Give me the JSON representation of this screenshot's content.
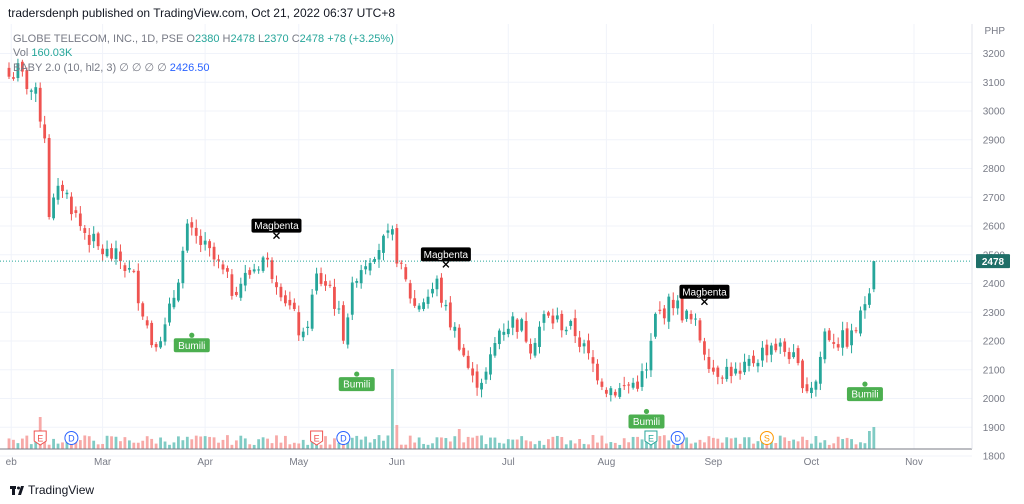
{
  "publisher_line": "tradersdenph published on TradingView.com, Oct 21, 2022 06:37 UTC+8",
  "footer": {
    "brand": "TradingView"
  },
  "legend": {
    "symbol": "GLOBE TELECOM, INC., 1D, PSE",
    "o_label": "O",
    "o": "2380",
    "h_label": "H",
    "h": "2478",
    "l_label": "L",
    "l": "2370",
    "c_label": "C",
    "c": "2478",
    "change": "+78 (+3.25%)",
    "vol_label": "Vol",
    "vol": "160.03K",
    "indicator": "BABY 2.0 (10, hl2, 3)",
    "indicator_values": "∅ ∅ ∅ ∅",
    "indicator_value": "2426.50"
  },
  "chart_data": {
    "type": "candlestick",
    "currency": "PHP",
    "ylim": [
      1800,
      3250
    ],
    "yticks": [
      3200,
      3100,
      3000,
      2900,
      2800,
      2700,
      2600,
      2500,
      2400,
      2300,
      2200,
      2100,
      2000,
      1900,
      1800
    ],
    "last_price": 2478,
    "xtick_labels": [
      {
        "label": "eb",
        "pos": 0.5
      },
      {
        "label": "Mar",
        "pos": 21
      },
      {
        "label": "Apr",
        "pos": 44
      },
      {
        "label": "May",
        "pos": 65
      },
      {
        "label": "Jun",
        "pos": 87
      },
      {
        "label": "Jul",
        "pos": 112
      },
      {
        "label": "Aug",
        "pos": 134
      },
      {
        "label": "Sep",
        "pos": 158
      },
      {
        "label": "Oct",
        "pos": 180
      },
      {
        "label": "Nov",
        "pos": 203
      }
    ],
    "anchors": [
      [
        0,
        3120
      ],
      [
        2,
        3140
      ],
      [
        6,
        3050
      ],
      [
        8,
        2920
      ],
      [
        9,
        2650
      ],
      [
        12,
        2740
      ],
      [
        16,
        2600
      ],
      [
        20,
        2520
      ],
      [
        25,
        2480
      ],
      [
        28,
        2420
      ],
      [
        32,
        2200
      ],
      [
        35,
        2240
      ],
      [
        37,
        2360
      ],
      [
        40,
        2580
      ],
      [
        43,
        2540
      ],
      [
        47,
        2460
      ],
      [
        50,
        2380
      ],
      [
        53,
        2420
      ],
      [
        57,
        2490
      ],
      [
        60,
        2420
      ],
      [
        64,
        2280
      ],
      [
        66,
        2200
      ],
      [
        69,
        2420
      ],
      [
        72,
        2390
      ],
      [
        75,
        2230
      ],
      [
        78,
        2440
      ],
      [
        82,
        2520
      ],
      [
        86,
        2560
      ],
      [
        88,
        2440
      ],
      [
        91,
        2320
      ],
      [
        94,
        2360
      ],
      [
        96,
        2400
      ],
      [
        98,
        2300
      ],
      [
        101,
        2200
      ],
      [
        104,
        2060
      ],
      [
        107,
        2080
      ],
      [
        110,
        2240
      ],
      [
        113,
        2270
      ],
      [
        115,
        2250
      ],
      [
        117,
        2190
      ],
      [
        120,
        2280
      ],
      [
        123,
        2270
      ],
      [
        127,
        2230
      ],
      [
        130,
        2140
      ],
      [
        134,
        2040
      ],
      [
        137,
        2030
      ],
      [
        141,
        2060
      ],
      [
        143,
        2090
      ],
      [
        145,
        2280
      ],
      [
        147,
        2310
      ],
      [
        149,
        2340
      ],
      [
        151,
        2300
      ],
      [
        154,
        2250
      ],
      [
        158,
        2100
      ],
      [
        162,
        2100
      ],
      [
        164,
        2070
      ],
      [
        166,
        2120
      ],
      [
        171,
        2190
      ],
      [
        175,
        2160
      ],
      [
        179,
        2040
      ],
      [
        181,
        2060
      ],
      [
        183,
        2230
      ],
      [
        186,
        2200
      ],
      [
        189,
        2210
      ],
      [
        191,
        2280
      ],
      [
        193,
        2400
      ],
      [
        194,
        2478
      ]
    ],
    "marks": [
      {
        "kind": "sell",
        "label": "Magbenta",
        "bar": 60,
        "price": 2570
      },
      {
        "kind": "sell",
        "label": "Magbenta",
        "bar": 98,
        "price": 2470
      },
      {
        "kind": "sell",
        "label": "Magbenta",
        "bar": 156,
        "price": 2340
      },
      {
        "kind": "buy",
        "label": "Bumili",
        "bar": 41,
        "price": 2220
      },
      {
        "kind": "buy",
        "label": "Bumili",
        "bar": 78,
        "price": 2085
      },
      {
        "kind": "buy",
        "label": "Bumili",
        "bar": 143,
        "price": 1955
      },
      {
        "kind": "buy",
        "label": "Bumili",
        "bar": 192,
        "price": 2050
      }
    ],
    "events": [
      {
        "letter": "E",
        "pos": 7,
        "color": "#ef5350"
      },
      {
        "letter": "D",
        "pos": 14,
        "color": "#2962ff"
      },
      {
        "letter": "E",
        "pos": 69,
        "color": "#ef5350"
      },
      {
        "letter": "D",
        "pos": 75,
        "color": "#2962ff"
      },
      {
        "letter": "E",
        "pos": 144,
        "color": "#26a69a"
      },
      {
        "letter": "D",
        "pos": 150,
        "color": "#2962ff"
      },
      {
        "letter": "S",
        "pos": 170,
        "color": "#ff9800"
      }
    ],
    "colors": {
      "up": "#26a69a",
      "down": "#ef5350",
      "vol_up": "#80cbc4",
      "vol_down": "#f7a9a7",
      "grid": "#f0f3fa",
      "axis_text": "#787b86"
    }
  }
}
